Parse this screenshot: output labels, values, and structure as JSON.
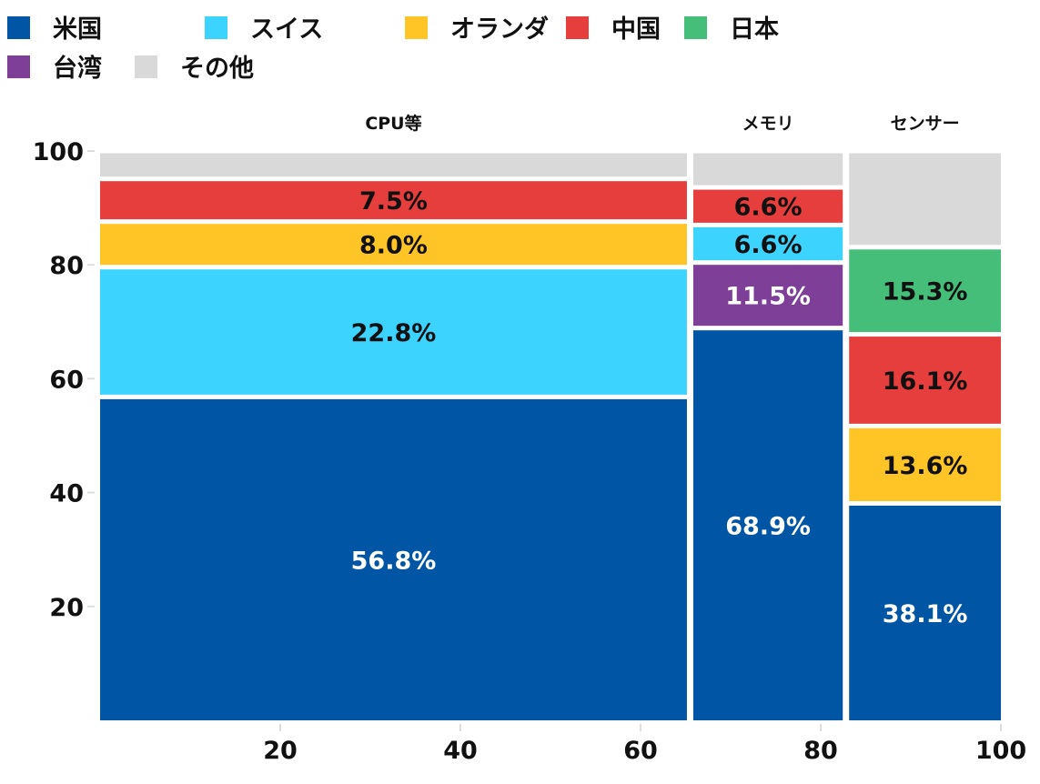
{
  "chart_data": {
    "type": "mekko",
    "title": "",
    "xlabel": "",
    "ylabel": "",
    "xlim": [
      0,
      100
    ],
    "ylim": [
      0,
      100
    ],
    "x_ticks": [
      "20",
      "40",
      "60",
      "80",
      "100"
    ],
    "y_ticks": [
      "20",
      "40",
      "60",
      "80",
      "100"
    ],
    "legend_placement": "top-left",
    "legend": [
      {
        "name": "米国",
        "color": "#0055a5"
      },
      {
        "name": "スイス",
        "color": "#3dd3ff"
      },
      {
        "name": "オランダ",
        "color": "#ffc425"
      },
      {
        "name": "中国",
        "color": "#e53e3c"
      },
      {
        "name": "日本",
        "color": "#44be78"
      },
      {
        "name": "台湾",
        "color": "#7e3f98"
      },
      {
        "name": "その他",
        "color": "#d9d9d9"
      }
    ],
    "columns": [
      {
        "name": "CPU等",
        "width": 65.5,
        "segments": [
          {
            "country": "米国",
            "value": 56.8,
            "label": "56.8%"
          },
          {
            "country": "スイス",
            "value": 22.8,
            "label": "22.8%"
          },
          {
            "country": "オランダ",
            "value": 8.0,
            "label": "8.0%"
          },
          {
            "country": "中国",
            "value": 7.5,
            "label": "7.5%"
          },
          {
            "country": "その他",
            "value": 4.9,
            "label": ""
          }
        ]
      },
      {
        "name": "メモリ",
        "width": 17.3,
        "segments": [
          {
            "country": "米国",
            "value": 68.9,
            "label": "68.9%"
          },
          {
            "country": "台湾",
            "value": 11.5,
            "label": "11.5%"
          },
          {
            "country": "スイス",
            "value": 6.6,
            "label": "6.6%"
          },
          {
            "country": "中国",
            "value": 6.6,
            "label": "6.6%"
          },
          {
            "country": "その他",
            "value": 6.4,
            "label": ""
          }
        ]
      },
      {
        "name": "センサー",
        "width": 17.2,
        "segments": [
          {
            "country": "米国",
            "value": 38.1,
            "label": "38.1%"
          },
          {
            "country": "オランダ",
            "value": 13.6,
            "label": "13.6%"
          },
          {
            "country": "中国",
            "value": 16.1,
            "label": "16.1%"
          },
          {
            "country": "日本",
            "value": 15.3,
            "label": "15.3%"
          },
          {
            "country": "その他",
            "value": 16.9,
            "label": ""
          }
        ]
      }
    ]
  }
}
